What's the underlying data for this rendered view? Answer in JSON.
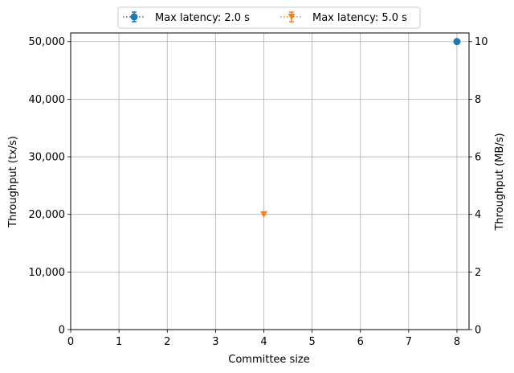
{
  "chart_data": {
    "type": "scatter",
    "xlabel": "Committee size",
    "ylabel": "Throughput (tx/s)",
    "ylabel_right": "Throughput (MB/s)",
    "xlim": [
      0,
      8.25
    ],
    "ylim": [
      0,
      51500
    ],
    "ylim_right": [
      0,
      10.3
    ],
    "x_ticks": [
      0,
      1,
      2,
      3,
      4,
      5,
      6,
      7,
      8
    ],
    "y_ticks": [
      0,
      10000,
      20000,
      30000,
      40000,
      50000
    ],
    "y_tick_labels": [
      "0",
      "10,000",
      "20,000",
      "30,000",
      "40,000",
      "50,000"
    ],
    "y_right_ticks": [
      0,
      2,
      4,
      6,
      8,
      10
    ],
    "grid": true,
    "legend_position": "top-center",
    "series": [
      {
        "name": "Max latency: 2.0 s",
        "color": "#1f77b4",
        "marker": "circle",
        "x": [
          8
        ],
        "y": [
          50000
        ]
      },
      {
        "name": "Max latency: 5.0 s",
        "color": "#ff7f0e",
        "marker": "triangle-down",
        "x": [
          4
        ],
        "y": [
          20000
        ]
      }
    ]
  }
}
